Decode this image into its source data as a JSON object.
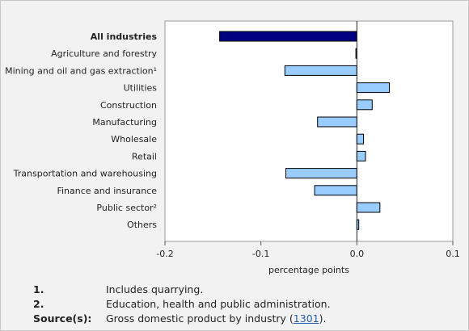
{
  "colors": {
    "positive_fill": "#99ccff",
    "highlight_fill": "#000080",
    "bar_stroke": "#000000",
    "link": "#2a5db0"
  },
  "chart_data": {
    "type": "bar",
    "orientation": "horizontal",
    "categories": [
      "All industries",
      "Agriculture and forestry",
      "Mining and oil and gas extraction¹",
      "Utilities",
      "Construction",
      "Manufacturing",
      "Wholesale",
      "Retail",
      "Transportation and warehousing",
      "Finance and insurance",
      "Public sector²",
      "Others"
    ],
    "values": [
      -0.143,
      -0.001,
      -0.075,
      0.034,
      0.016,
      -0.041,
      0.007,
      0.009,
      -0.074,
      -0.044,
      0.024,
      0.002
    ],
    "highlight_index": 0,
    "xlabel": "percentage points",
    "xlim": [
      -0.2,
      0.1
    ],
    "xticks": [
      "-0.2",
      "-0.1",
      "0.0",
      "0.1"
    ],
    "xtick_values": [
      -0.2,
      -0.1,
      0.0,
      0.1
    ],
    "grid": false
  },
  "footnotes": [
    {
      "key": "1.",
      "text": "Includes quarrying."
    },
    {
      "key": "2.",
      "text": "Education, health and public administration."
    }
  ],
  "source": {
    "key": "Source(s):",
    "text_before": "Gross domestic product by industry (",
    "link": "1301",
    "text_after": ")."
  }
}
